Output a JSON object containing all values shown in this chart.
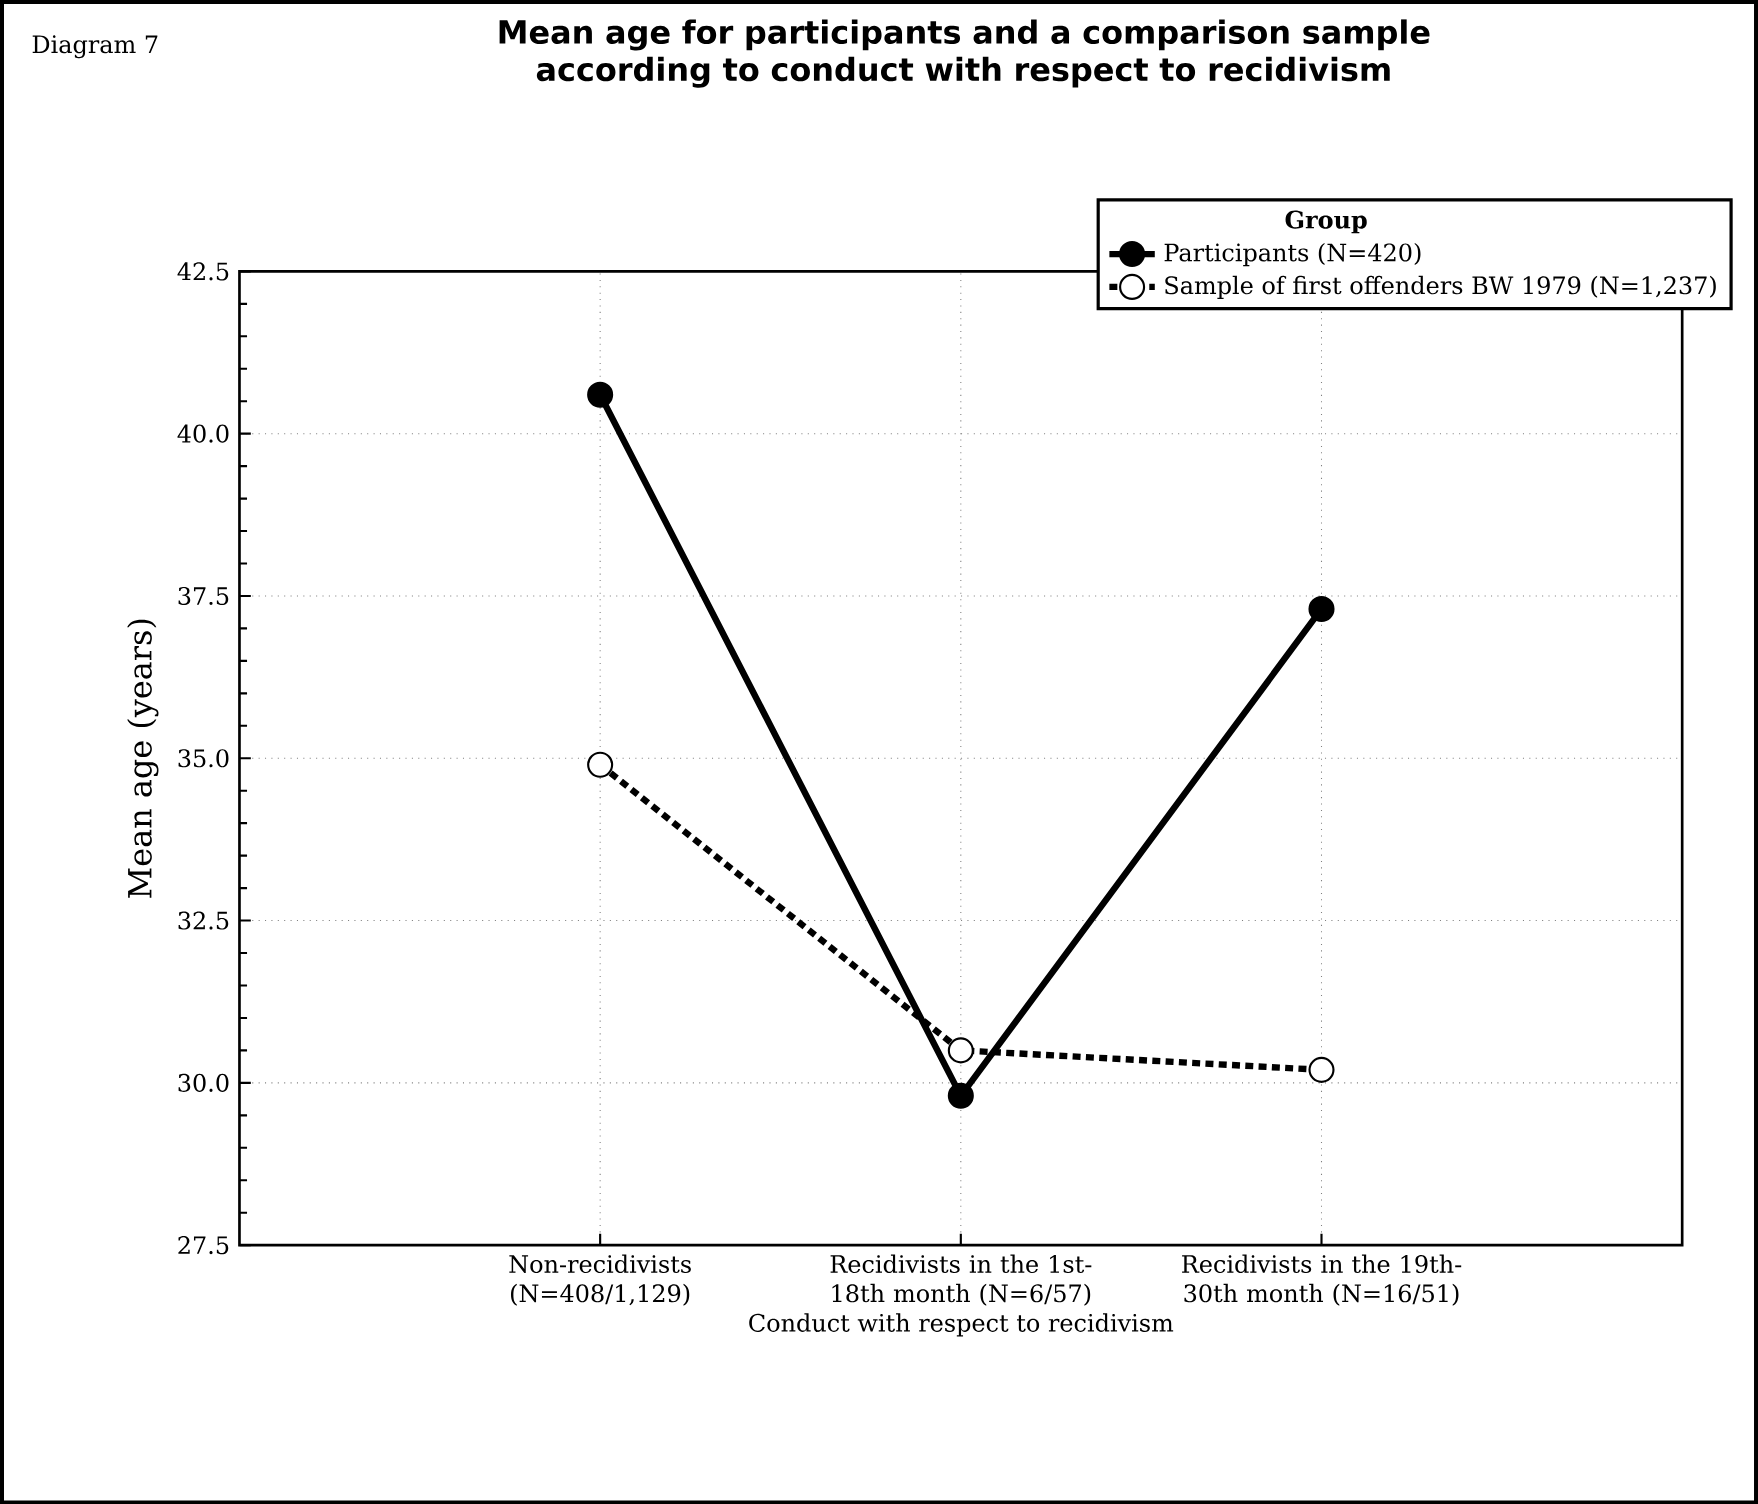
{
  "chart_data": {
    "type": "line",
    "title": "Mean age for participants and a comparison sample according to conduct with respect to recidivism",
    "xlabel": "Conduct with respect to recidivism",
    "ylabel": "Mean age  (years)",
    "legend_title": "Group",
    "annotations": [
      "Diagram 7"
    ],
    "categories": [
      "Non-recidivists (N=408/1,129)",
      "Recidivists in the 1st-18th month (N=6/57)",
      "Recidivists in the 19th-30th month (N=16/51)"
    ],
    "ylim": [
      27.5,
      42.5
    ],
    "yticks": [
      27.5,
      {
        "value": 30,
        "label": "30.0"
      },
      32.5,
      {
        "value": 35,
        "label": "35.0"
      },
      37.5,
      {
        "value": 40,
        "label": "40.0"
      },
      42.5
    ],
    "grid": true,
    "legend": "top right",
    "marker": "circle",
    "series": [
      {
        "name": "Participants (N=420)",
        "color": "#000000",
        "values": [
          40.6,
          29.8,
          37.3
        ],
        "line_style": "solid"
      },
      {
        "name": "Sample of first offenders BW 1979 (N=1,237)",
        "color": "#000000",
        "values": [
          34.9,
          30.5,
          30.2
        ],
        "line_style": "dotted"
      }
    ]
  }
}
